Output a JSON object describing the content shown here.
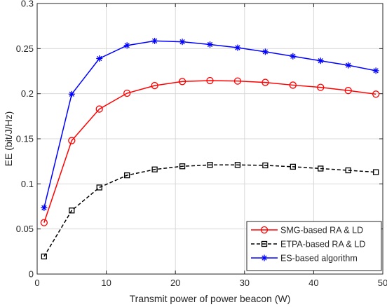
{
  "chart_data": {
    "type": "line",
    "title": "",
    "xlabel": "Transmit power of power beacon (W)",
    "ylabel": "EE (bit/J/Hz)",
    "xlim": [
      0,
      50
    ],
    "ylim": [
      0,
      0.3
    ],
    "xticks": [
      0,
      10,
      20,
      30,
      40,
      50
    ],
    "xtick_labels": [
      "0",
      "10",
      "20",
      "30",
      "40",
      "50"
    ],
    "yticks": [
      0,
      0.05,
      0.1,
      0.15,
      0.2,
      0.25,
      0.3
    ],
    "ytick_labels": [
      "0",
      "0.05",
      "0.1",
      "0.15",
      "0.2",
      "0.25",
      "0.3"
    ],
    "grid": true,
    "legend_position": "bottom-right",
    "x": [
      1,
      5,
      9,
      13,
      17,
      21,
      25,
      29,
      33,
      37,
      41,
      45,
      49
    ],
    "series": [
      {
        "name": "SMG-based RA & LD",
        "color": "#ff0000",
        "line_style": "solid",
        "marker": "circle",
        "values": [
          0.057,
          0.148,
          0.183,
          0.2005,
          0.209,
          0.2135,
          0.2145,
          0.214,
          0.2125,
          0.2095,
          0.207,
          0.2035,
          0.1995
        ]
      },
      {
        "name": "ETPA-based RA & LD",
        "color": "#000000",
        "line_style": "dashed",
        "marker": "square",
        "values": [
          0.0195,
          0.0705,
          0.096,
          0.1095,
          0.116,
          0.1195,
          0.121,
          0.121,
          0.1205,
          0.119,
          0.117,
          0.115,
          0.113
        ]
      },
      {
        "name": "ES-based algorithm",
        "color": "#0000ff",
        "line_style": "solid",
        "marker": "asterisk",
        "values": [
          0.0735,
          0.1995,
          0.239,
          0.2535,
          0.2585,
          0.2575,
          0.2545,
          0.251,
          0.2465,
          0.2415,
          0.2365,
          0.2315,
          0.2255
        ]
      }
    ]
  }
}
